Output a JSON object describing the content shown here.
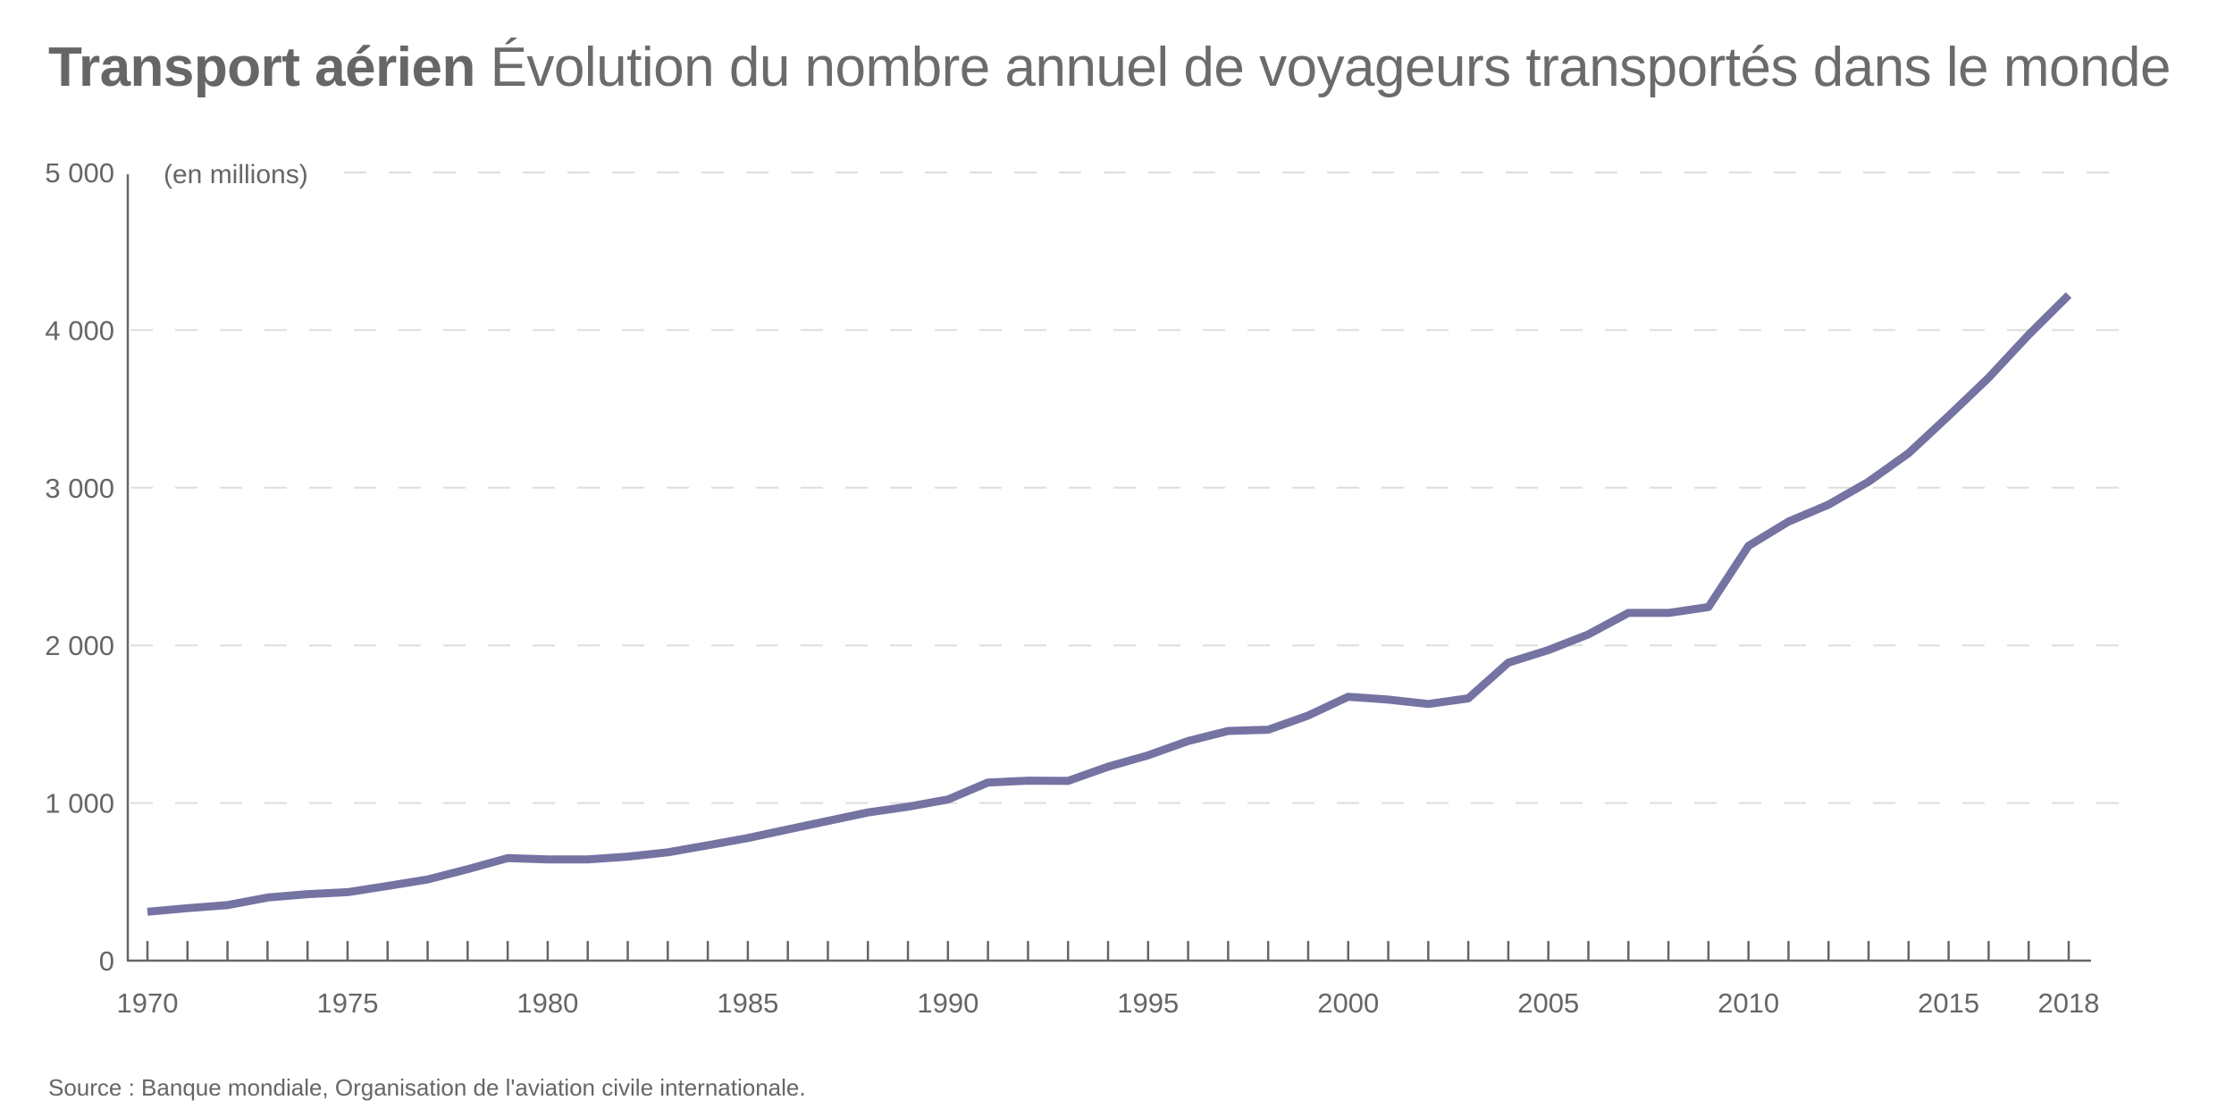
{
  "title": {
    "bold": "Transport aérien",
    "light": "Évolution du nombre annuel de voyageurs transportés dans le monde"
  },
  "source": "Source : Banque mondiale, Organisation de l'aviation civile internationale.",
  "colors": {
    "line": "#7573a2",
    "text": "#666666",
    "grid": "#dddddd",
    "axis": "#666666"
  },
  "chart_data": {
    "type": "line",
    "title": "Transport aérien Évolution du nombre annuel de voyageurs transportés dans le monde",
    "xlabel": "",
    "ylabel": "(en millions)",
    "ylim": [
      0,
      5000
    ],
    "xlim": [
      1970,
      2018
    ],
    "grid": true,
    "legend": "none",
    "yticks": [
      0,
      1000,
      2000,
      3000,
      4000,
      5000
    ],
    "ytick_labels": [
      "0",
      "1 000",
      "2 000",
      "3 000",
      "4 000",
      "5 000"
    ],
    "xticks": [
      1970,
      1975,
      1980,
      1985,
      1990,
      1995,
      2000,
      2005,
      2010,
      2015,
      2018
    ],
    "xtick_labels": [
      "1970",
      "1975",
      "1980",
      "1985",
      "1990",
      "1995",
      "2000",
      "2005",
      "2010",
      "2015",
      "2018"
    ],
    "x": [
      1970,
      1971,
      1972,
      1973,
      1974,
      1975,
      1976,
      1977,
      1978,
      1979,
      1980,
      1981,
      1982,
      1983,
      1984,
      1985,
      1986,
      1987,
      1988,
      1989,
      1990,
      1991,
      1992,
      1993,
      1994,
      1995,
      1996,
      1997,
      1998,
      1999,
      2000,
      2001,
      2002,
      2003,
      2004,
      2005,
      2006,
      2007,
      2008,
      2009,
      2010,
      2011,
      2012,
      2013,
      2014,
      2015,
      2016,
      2017,
      2018
    ],
    "series": [
      {
        "name": "Voyageurs transportés (millions)",
        "values": [
          310,
          333,
          352,
          400,
          422,
          434,
          474,
          515,
          580,
          650,
          642,
          642,
          660,
          687,
          732,
          778,
          832,
          886,
          940,
          976,
          1022,
          1130,
          1142,
          1140,
          1230,
          1302,
          1393,
          1457,
          1465,
          1555,
          1674,
          1656,
          1628,
          1664,
          1890,
          1970,
          2070,
          2206,
          2206,
          2243,
          2631,
          2785,
          2893,
          3038,
          3219,
          3455,
          3698,
          3970,
          4222
        ]
      }
    ]
  }
}
